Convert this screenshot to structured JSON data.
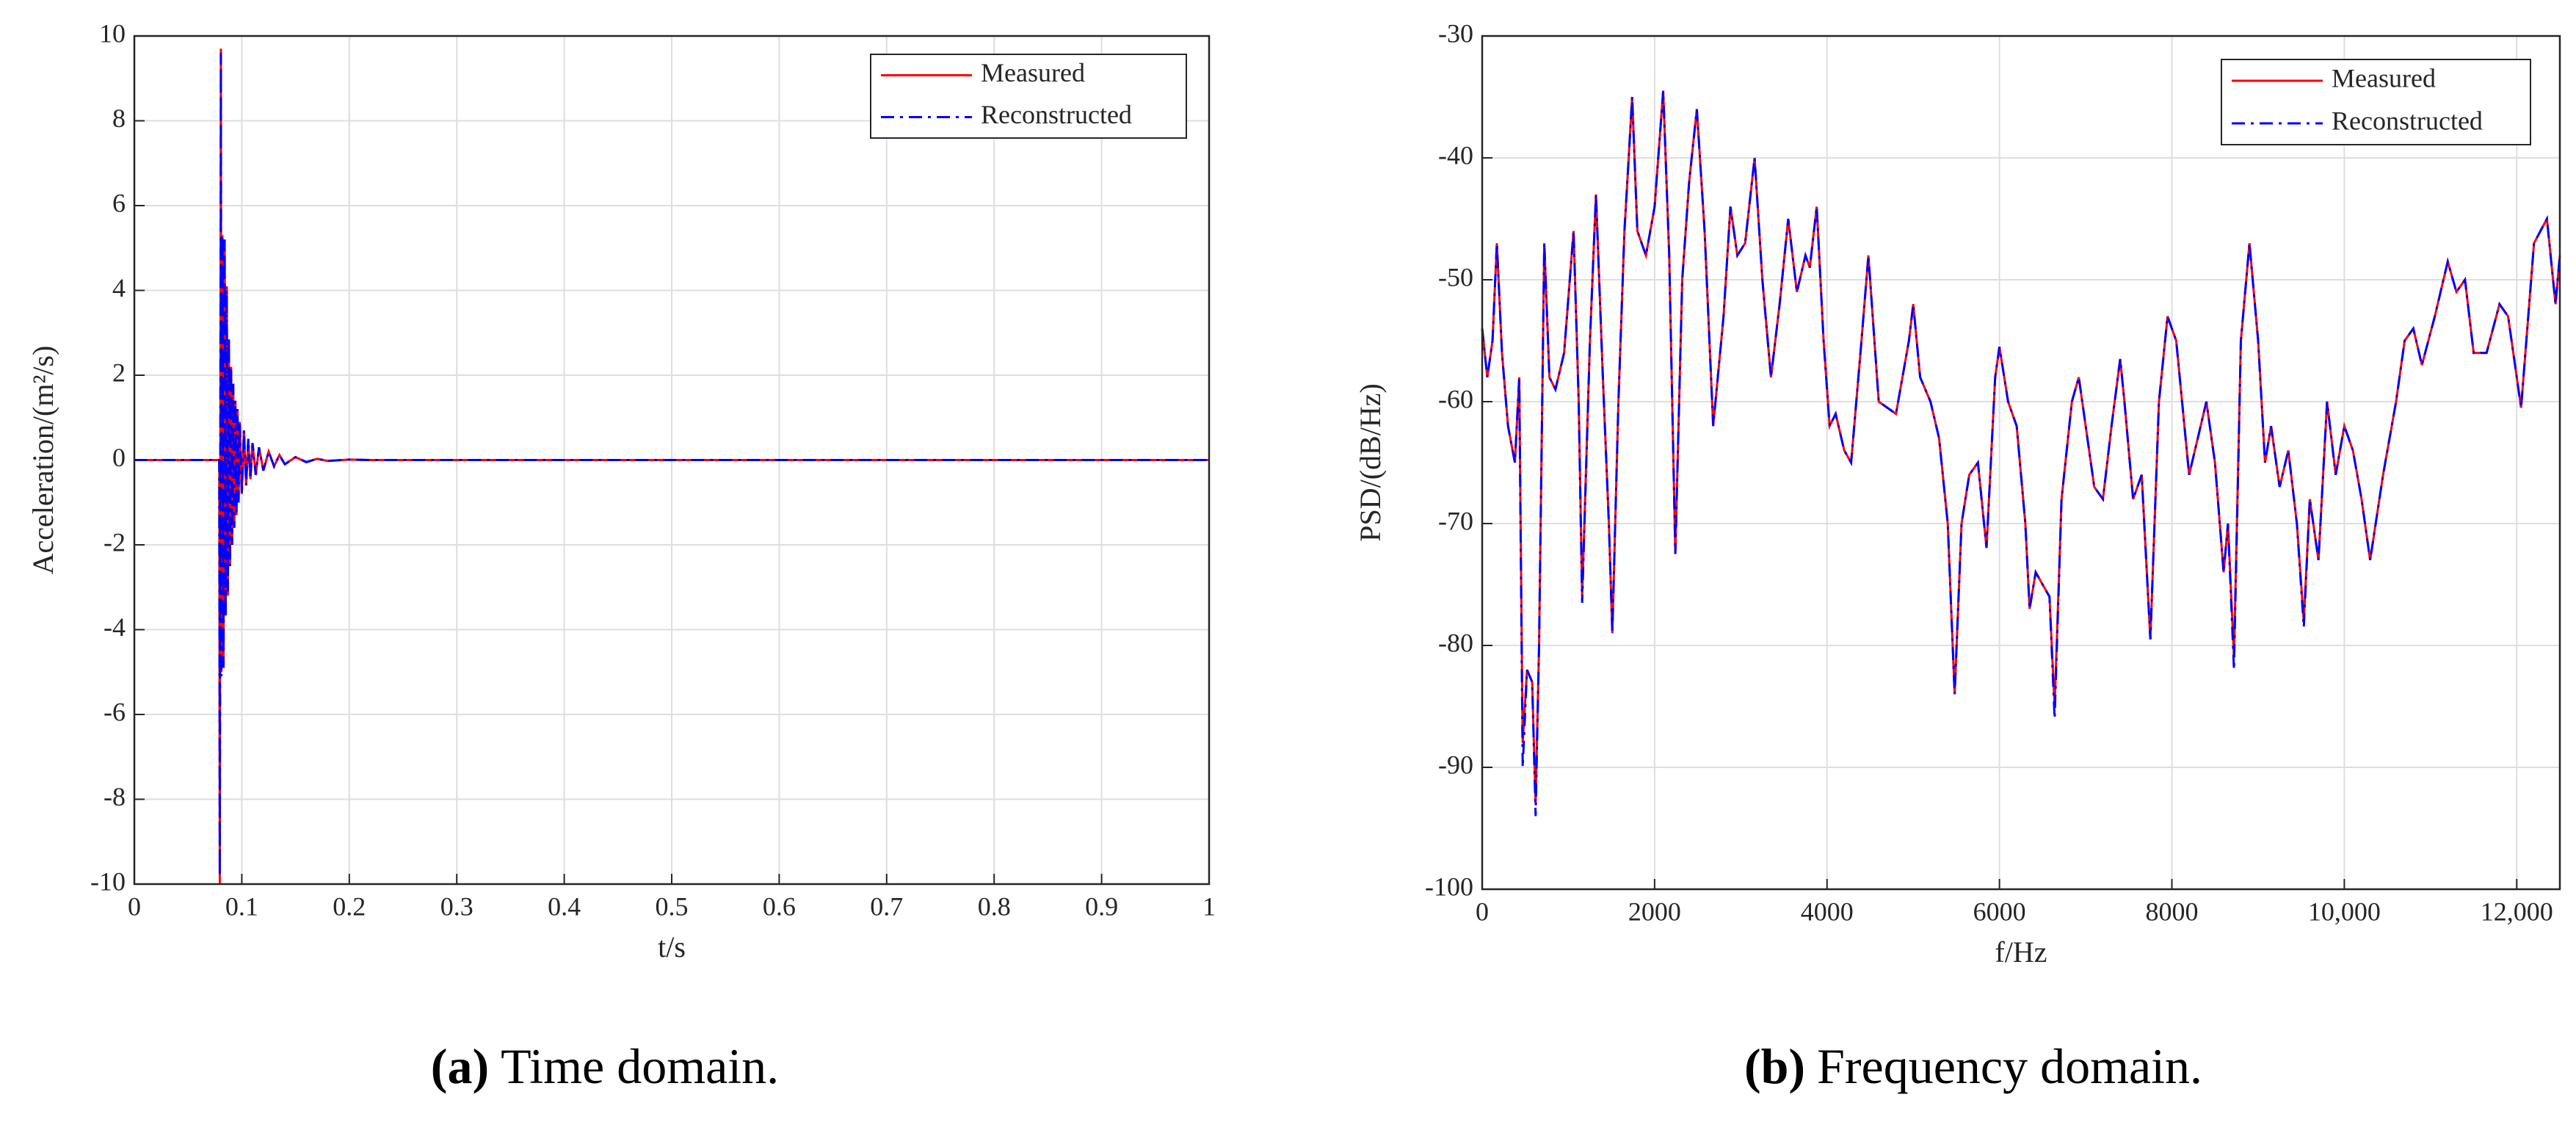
{
  "chart_data": [
    {
      "type": "line",
      "xlabel": "t/s",
      "ylabel": "Acceleration/(m²/s)",
      "caption_label": "(a)",
      "caption": "Time domain.",
      "xlim": [
        0,
        1
      ],
      "ylim": [
        -10,
        10
      ],
      "xticks": [
        0,
        0.1,
        0.2,
        0.3,
        0.4,
        0.5,
        0.6,
        0.7,
        0.8,
        0.9,
        1
      ],
      "yticks": [
        -10,
        -8,
        -6,
        -4,
        -2,
        0,
        2,
        4,
        6,
        8,
        10
      ],
      "grid": true,
      "legend": "upper right",
      "x": [
        0,
        0.079,
        0.0795,
        0.0805,
        0.081,
        0.082,
        0.083,
        0.084,
        0.085,
        0.086,
        0.087,
        0.088,
        0.089,
        0.09,
        0.091,
        0.092,
        0.093,
        0.094,
        0.095,
        0.096,
        0.097,
        0.098,
        0.1,
        0.102,
        0.104,
        0.106,
        0.108,
        0.11,
        0.113,
        0.116,
        0.12,
        0.125,
        0.13,
        0.135,
        0.14,
        0.15,
        0.16,
        0.17,
        0.18,
        0.2,
        0.22,
        1
      ],
      "series": [
        {
          "name": "Measured",
          "color": "#ff0000",
          "dash": "solid",
          "values": [
            0,
            0,
            -10,
            9.7,
            -5,
            5.3,
            -4.8,
            5.2,
            -3.6,
            4.1,
            -3.2,
            2.8,
            -2.5,
            2.2,
            -2,
            1.8,
            -1.5,
            1.4,
            -1.3,
            1.2,
            -1,
            0.9,
            -0.8,
            0.7,
            -0.6,
            0.5,
            -0.45,
            0.4,
            -0.35,
            0.3,
            -0.25,
            0.2,
            -0.15,
            0.12,
            -0.1,
            0.07,
            -0.05,
            0.03,
            -0.02,
            0.01,
            0,
            0
          ]
        },
        {
          "name": "Reconstructed",
          "color": "#0000ff",
          "dash": "dashdot",
          "values": [
            0,
            0,
            -9.8,
            9.6,
            -5.1,
            5.3,
            -4.9,
            5.2,
            -3.7,
            4,
            -3.1,
            2.9,
            -2.5,
            2.2,
            -2,
            1.8,
            -1.6,
            1.4,
            -1.3,
            1.2,
            -1,
            0.9,
            -0.8,
            0.7,
            -0.6,
            0.5,
            -0.45,
            0.4,
            -0.35,
            0.3,
            -0.25,
            0.2,
            -0.15,
            0.12,
            -0.1,
            0.07,
            -0.05,
            0.03,
            -0.02,
            0.01,
            0,
            0
          ]
        }
      ]
    },
    {
      "type": "line",
      "xlabel": "f/Hz",
      "ylabel": "PSD/(dB/Hz)",
      "caption_label": "(b)",
      "caption": "Frequency domain.",
      "xlim": [
        0,
        12500
      ],
      "ylim": [
        -100,
        -30
      ],
      "xticks": [
        0,
        2000,
        4000,
        6000,
        8000,
        {
          "value": 10000,
          "label": "10,000"
        },
        {
          "value": 12000,
          "label": "12,000"
        }
      ],
      "yticks": [
        -100,
        -90,
        -80,
        -70,
        -60,
        -50,
        -40,
        -30
      ],
      "grid": true,
      "legend": "upper right",
      "x": [
        0,
        60,
        120,
        170,
        230,
        300,
        380,
        430,
        470,
        520,
        580,
        620,
        660,
        720,
        780,
        850,
        950,
        1060,
        1120,
        1160,
        1250,
        1320,
        1400,
        1470,
        1510,
        1580,
        1650,
        1700,
        1740,
        1800,
        1900,
        2000,
        2100,
        2170,
        2240,
        2320,
        2400,
        2490,
        2580,
        2680,
        2800,
        2880,
        2960,
        3050,
        3160,
        3250,
        3350,
        3450,
        3550,
        3650,
        3750,
        3800,
        3880,
        3960,
        4030,
        4100,
        4200,
        4280,
        4400,
        4480,
        4600,
        4800,
        4950,
        5000,
        5080,
        5200,
        5300,
        5400,
        5480,
        5560,
        5650,
        5750,
        5850,
        5950,
        6000,
        6100,
        6200,
        6300,
        6350,
        6420,
        6500,
        6580,
        6640,
        6720,
        6840,
        6920,
        7000,
        7100,
        7200,
        7300,
        7400,
        7450,
        7550,
        7650,
        7750,
        7850,
        7950,
        8050,
        8200,
        8300,
        8400,
        8500,
        8600,
        8650,
        8720,
        8800,
        8900,
        9000,
        9080,
        9150,
        9250,
        9350,
        9450,
        9530,
        9600,
        9700,
        9800,
        9900,
        10000,
        10100,
        10200,
        10300,
        10450,
        10600,
        10700,
        10800,
        10900,
        11050,
        11200,
        11300,
        11400,
        11500,
        11650,
        11800,
        11900,
        12050,
        12200,
        12350,
        12450,
        12500
      ],
      "series": [
        {
          "name": "Measured",
          "color": "#ff0000",
          "dash": "solid",
          "values": [
            -54,
            -58,
            -55,
            -47,
            -56,
            -62,
            -65,
            -58,
            -88,
            -82,
            -83,
            -93,
            -80,
            -47,
            -58,
            -59,
            -56,
            -46,
            -60,
            -76,
            -55,
            -43,
            -58,
            -70,
            -79,
            -60,
            -46,
            -40,
            -35,
            -46,
            -48,
            -44,
            -34.5,
            -48,
            -72.5,
            -50,
            -42,
            -36,
            -46,
            -62,
            -53,
            -44,
            -48,
            -47,
            -40,
            -50,
            -58,
            -52,
            -45,
            -51,
            -48,
            -49,
            -44,
            -55,
            -62,
            -61,
            -64,
            -65,
            -55,
            -48,
            -60,
            -61,
            -55,
            -52,
            -58,
            -60,
            -63,
            -70,
            -84,
            -70,
            -66,
            -65,
            -72,
            -58,
            -55.5,
            -60,
            -62,
            -70,
            -77,
            -74,
            -75,
            -76,
            -85,
            -68,
            -60,
            -58,
            -62,
            -67,
            -68,
            -62,
            -56.5,
            -60,
            -68,
            -66,
            -79.5,
            -60,
            -53,
            -55,
            -66,
            -63,
            -60,
            -65,
            -74,
            -70,
            -81,
            -55,
            -47,
            -55,
            -65,
            -62,
            -67,
            -64,
            -70,
            -78,
            -68,
            -73,
            -60,
            -66,
            -62,
            -64,
            -68,
            -73,
            -66,
            -60,
            -55,
            -54,
            -57,
            -53,
            -48.5,
            -51,
            -50,
            -56,
            -56,
            -52,
            -53,
            -60.5,
            -47,
            -45,
            -52,
            -48
          ]
        },
        {
          "name": "Reconstructed",
          "color": "#0000ff",
          "dash": "dashdot",
          "values": [
            -54,
            -58,
            -55,
            -47,
            -56,
            -62,
            -65,
            -58,
            -90,
            -82,
            -83,
            -94,
            -80,
            -47,
            -58,
            -59,
            -56,
            -46,
            -60,
            -76.5,
            -55,
            -43,
            -58,
            -70,
            -79,
            -60,
            -46,
            -40,
            -35,
            -46,
            -48,
            -44,
            -34.5,
            -48,
            -72.5,
            -50,
            -42,
            -36,
            -46,
            -62,
            -53,
            -44,
            -48,
            -47,
            -40,
            -50,
            -58,
            -52,
            -45,
            -51,
            -48,
            -49,
            -44,
            -55,
            -62,
            -61,
            -64,
            -65,
            -55,
            -48,
            -60,
            -61,
            -55,
            -52,
            -58,
            -60,
            -63,
            -70,
            -84,
            -70,
            -66,
            -65,
            -72,
            -58,
            -55.5,
            -60,
            -62,
            -70,
            -77,
            -74,
            -75,
            -76,
            -86,
            -68,
            -60,
            -58,
            -62,
            -67,
            -68,
            -62,
            -56.5,
            -60,
            -68,
            -66,
            -79.5,
            -60,
            -53,
            -55,
            -66,
            -63,
            -60,
            -65,
            -74,
            -70,
            -82,
            -55,
            -47,
            -55,
            -65,
            -62,
            -67,
            -64,
            -70,
            -78.5,
            -68,
            -73,
            -60,
            -66,
            -62,
            -64,
            -68,
            -73,
            -66,
            -60,
            -55,
            -54,
            -57,
            -53,
            -48.5,
            -51,
            -50,
            -56,
            -56,
            -52,
            -53,
            -60.5,
            -47,
            -45,
            -52,
            -48
          ]
        }
      ]
    }
  ]
}
